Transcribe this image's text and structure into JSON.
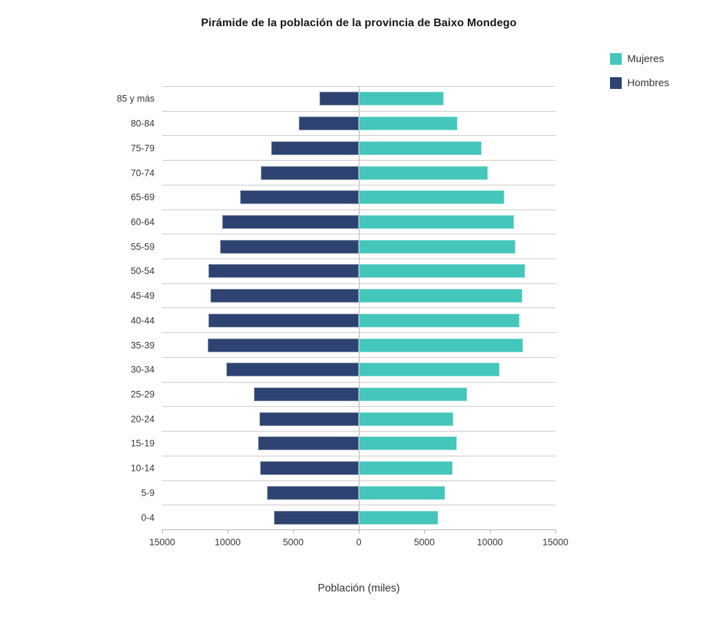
{
  "chart_data": {
    "type": "bar",
    "subtype": "population-pyramid",
    "title": "Pirámide de la población de la provincia de Baixo Mondego",
    "xlabel": "Población (miles)",
    "ylabel": "",
    "axis_max": 15000,
    "xlim": [
      -15000,
      15000
    ],
    "x_ticks": [
      "15000",
      "10000",
      "5000",
      "0",
      "5000",
      "10000",
      "15000"
    ],
    "grid": "horizontal category boundary lines",
    "legend_position": "top-right",
    "categories": [
      "85 y más",
      "80-84",
      "75-79",
      "70-74",
      "65-69",
      "60-64",
      "55-59",
      "50-54",
      "45-49",
      "40-44",
      "35-39",
      "30-34",
      "25-29",
      "20-24",
      "15-19",
      "10-14",
      "5-9",
      "0-4"
    ],
    "series": [
      {
        "name": "Mujeres",
        "side": "right",
        "color": "#45c6bb",
        "values": [
          6450,
          7550,
          9350,
          9850,
          11100,
          11850,
          11950,
          12700,
          12450,
          12250,
          12550,
          10750,
          8250,
          7200,
          7450,
          7150,
          6600,
          6050
        ]
      },
      {
        "name": "Hombres",
        "side": "left",
        "color": "#2e4372",
        "values": [
          3000,
          4600,
          6700,
          7450,
          9050,
          10400,
          10600,
          11450,
          11300,
          11500,
          11550,
          10100,
          8000,
          7600,
          7700,
          7550,
          7000,
          6500
        ]
      }
    ],
    "colors": {
      "gridline": "#c9c9c9",
      "axis_line": "#b0b0b0",
      "zero_line": "#b3b3b3",
      "text": "#373737",
      "title_text": "#161616"
    }
  }
}
